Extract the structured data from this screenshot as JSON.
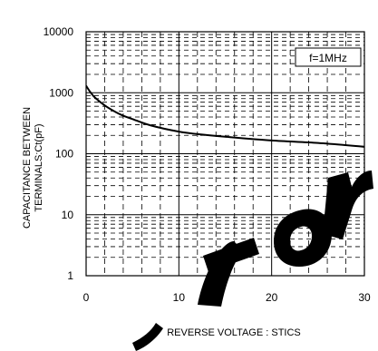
{
  "chart_data": {
    "type": "line",
    "y_scale": "log",
    "x_axis": {
      "range": [
        0,
        30
      ],
      "ticks": [
        0,
        10,
        20,
        30
      ],
      "tick_labels": [
        "0",
        "10",
        "20",
        "30"
      ],
      "label": "REVERSE VOLTAGE : STICS"
    },
    "y_axis": {
      "range": [
        1,
        10000
      ],
      "ticks": [
        1,
        10,
        100,
        1000,
        10000
      ],
      "tick_labels": [
        "1",
        "10",
        "100",
        "1000",
        "10000"
      ],
      "label_lines": [
        "CAPACITANCE BETWEEN",
        "TERMINALS:Ct(pF)"
      ]
    },
    "grid": true,
    "annotation": "f=1MHz",
    "series": [
      {
        "x": [
          0,
          0.5,
          1,
          2,
          3,
          4,
          5,
          7,
          10,
          12,
          15,
          20,
          25,
          30
        ],
        "y": [
          1300,
          1000,
          820,
          620,
          500,
          420,
          370,
          290,
          230,
          210,
          190,
          165,
          150,
          130
        ]
      }
    ],
    "colors": {
      "line": "#000000",
      "grid": "#000000",
      "watermark": "#000000"
    },
    "watermark_text": "for"
  }
}
